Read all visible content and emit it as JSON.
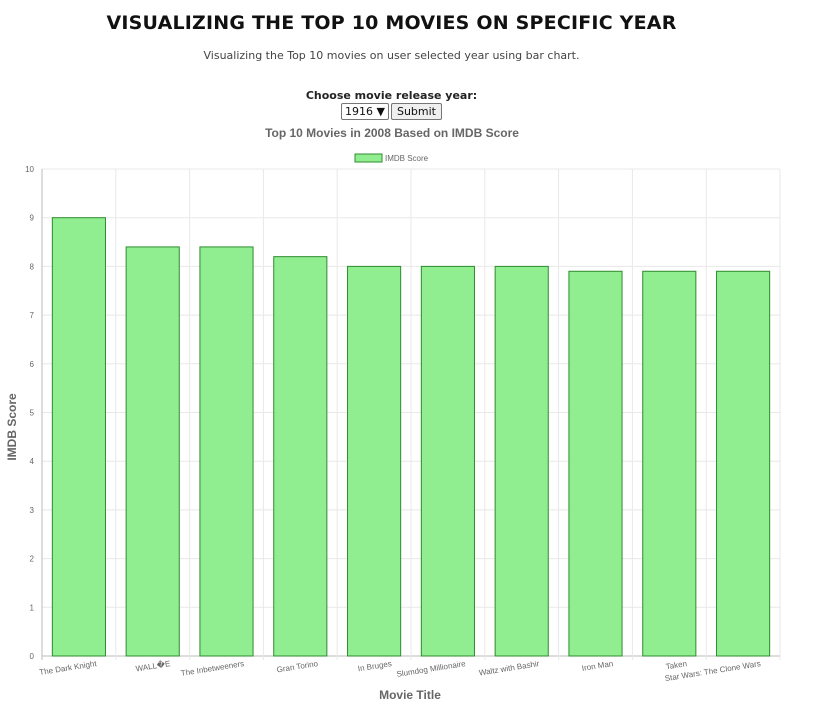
{
  "header": {
    "title": "VISUALIZING THE TOP 10 MOVIES ON SPECIFIC YEAR",
    "subtitle": "Visualizing the Top 10 movies on user selected year using bar chart."
  },
  "form": {
    "year_label": "Choose movie release year:",
    "selected_year": "1916",
    "dropdown_arrow": "▼",
    "submit_label": "Submit"
  },
  "colors": {
    "bar_fill": "#90ee90",
    "bar_stroke": "#2e8b2e",
    "grid": "#e8e8e8",
    "axis_text": "#666666"
  },
  "chart_data": {
    "type": "bar",
    "title": "Top 10 Movies in 2008 Based on IMDB Score",
    "xlabel": "Movie Title",
    "ylabel": "IMDB Score",
    "ylim": [
      0,
      10
    ],
    "yticks": [
      0,
      1,
      2,
      3,
      4,
      5,
      6,
      7,
      8,
      9,
      10
    ],
    "legend_position": "top",
    "grid": true,
    "categories": [
      "The Dark Knight",
      "WALL�E",
      "The Inbetweeners",
      "Gran Torino",
      "In Bruges",
      "Slumdog Millionaire",
      "Waltz with Bashir",
      "Iron Man",
      "Taken",
      "Star Wars: The Clone Wars"
    ],
    "series": [
      {
        "name": "IMDB Score",
        "values": [
          9.0,
          8.4,
          8.4,
          8.2,
          8.0,
          8.0,
          8.0,
          7.9,
          7.9,
          7.9
        ]
      }
    ]
  }
}
